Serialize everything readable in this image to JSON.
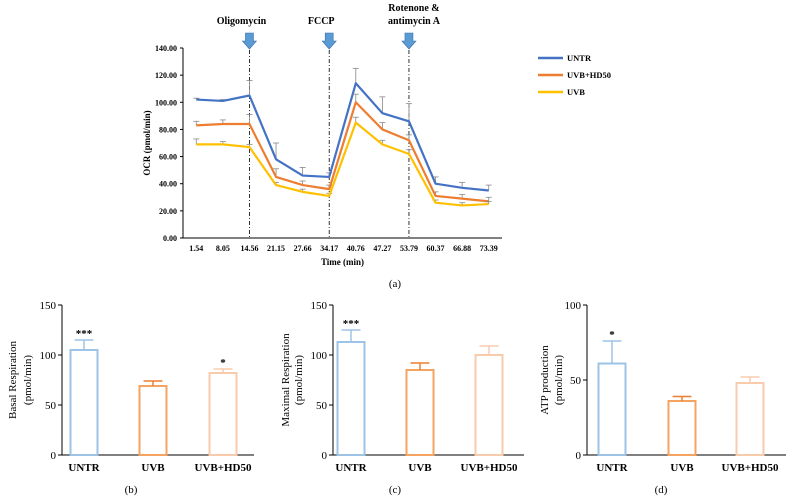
{
  "colors": {
    "untr": "#4472C4",
    "uvb_hd50": "#ED7D31",
    "uvb": "#FFC000",
    "bar_untr": "#9DC3E6",
    "bar_uvb": "#F4A460",
    "bar_uvb_hd50": "#F8CBAD",
    "arrow": "#5B9BD5",
    "axis": "#000000"
  },
  "chart_data": [
    {
      "type": "line",
      "panel_label": "(a)",
      "title": "",
      "xlabel": "Time (min)",
      "ylabel": "OCR (pmol/min)",
      "ylim": [
        0,
        140
      ],
      "yticks": [
        "0.00",
        "20.00",
        "40.00",
        "60.00",
        "80.00",
        "100.00",
        "120.00",
        "140.00"
      ],
      "x": [
        "1.54",
        "8.05",
        "14.56",
        "21.15",
        "27.66",
        "34.17",
        "40.76",
        "47.27",
        "53.79",
        "60.37",
        "66.88",
        "73.39"
      ],
      "injections": [
        {
          "label": "Oligomycin",
          "after_index": 2
        },
        {
          "label": "FCCP",
          "after_index": 5
        },
        {
          "label": "Rotenone &",
          "label2": "antimycin A",
          "after_index": 8
        }
      ],
      "legend": [
        "UNTR",
        "UVB+HD50",
        "UVB"
      ],
      "series": [
        {
          "name": "UNTR",
          "values": [
            102,
            101,
            105,
            58,
            46,
            45,
            114,
            92,
            86,
            40,
            37,
            35
          ],
          "errors": [
            1,
            1,
            11,
            12,
            6,
            3,
            11,
            12,
            13,
            5,
            4,
            4
          ]
        },
        {
          "name": "UVB+HD50",
          "values": [
            83,
            84,
            84,
            45,
            39,
            36,
            100,
            80,
            72,
            31,
            29,
            27
          ],
          "errors": [
            3,
            3,
            7,
            6,
            3,
            3,
            6,
            5,
            4,
            3,
            3,
            3
          ]
        },
        {
          "name": "UVB",
          "values": [
            69,
            69,
            67,
            39,
            34,
            31,
            85,
            69,
            62,
            26,
            24,
            25
          ],
          "errors": [
            4,
            2,
            2,
            2,
            2,
            2,
            4,
            3,
            3,
            2,
            2,
            2
          ]
        }
      ]
    },
    {
      "type": "bar",
      "panel_label": "(b)",
      "ylabel": "Basal Respiration",
      "ylabel2": "(pmol/min)",
      "ylim": [
        0,
        150
      ],
      "yticks": [
        "0",
        "50",
        "100",
        "150"
      ],
      "categories": [
        "UNTR",
        "UVB",
        "UVB+HD50"
      ],
      "values": [
        105,
        69,
        82
      ],
      "errors": [
        10,
        5,
        4
      ],
      "annotations": [
        "***",
        "",
        "*"
      ]
    },
    {
      "type": "bar",
      "panel_label": "(c)",
      "ylabel": "Maximal Respiration",
      "ylabel2": "(pmol/min)",
      "ylim": [
        0,
        150
      ],
      "yticks": [
        "0",
        "50",
        "100",
        "150"
      ],
      "categories": [
        "UNTR",
        "UVB",
        "UVB+HD50"
      ],
      "values": [
        113,
        85,
        100
      ],
      "errors": [
        12,
        7,
        9
      ],
      "annotations": [
        "***",
        "",
        ""
      ]
    },
    {
      "type": "bar",
      "panel_label": "(d)",
      "ylabel": "ATP production",
      "ylabel2": "(pmol/min)",
      "ylim": [
        0,
        100
      ],
      "yticks": [
        "0",
        "50",
        "100"
      ],
      "categories": [
        "UNTR",
        "UVB",
        "UVB+HD50"
      ],
      "values": [
        61,
        36,
        48
      ],
      "errors": [
        15,
        3,
        4
      ],
      "annotations": [
        "*",
        "",
        ""
      ]
    }
  ]
}
